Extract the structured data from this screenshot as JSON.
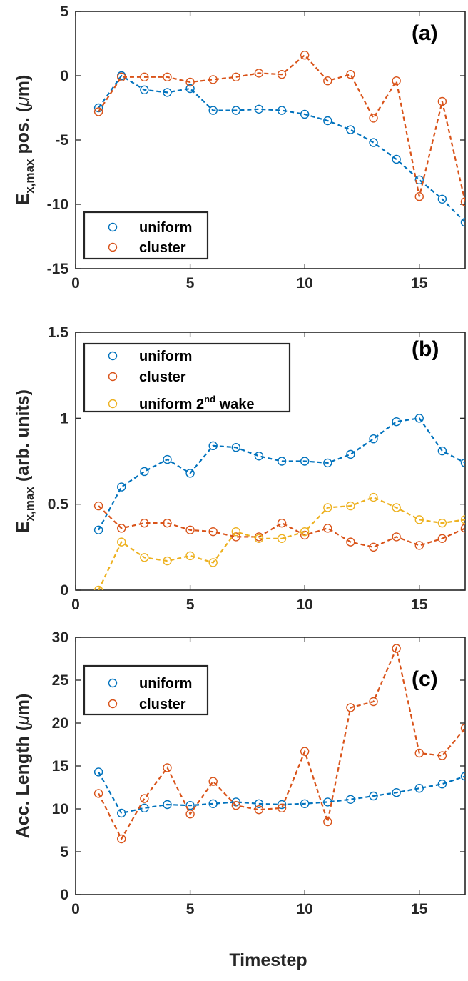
{
  "colors": {
    "uniform": "#0072BD",
    "cluster": "#D95319",
    "uniform2": "#EDB120",
    "axis": "#262626"
  },
  "xlabel": "Timestep",
  "chart_data": [
    {
      "id": "a",
      "type": "line",
      "panel_label": "(a)",
      "ylabel_main": "E",
      "ylabel_sub": "x,max",
      "ylabel_rest": " pos. (",
      "ylabel_greek": "μ",
      "ylabel_end": "m)",
      "xlim": [
        0,
        17
      ],
      "ylim": [
        -15,
        5
      ],
      "xticks": [
        0,
        5,
        10,
        15
      ],
      "yticks": [
        -15,
        -10,
        -5,
        0,
        5
      ],
      "legend": {
        "position": "bottom-left"
      },
      "x": [
        1,
        2,
        3,
        4,
        5,
        6,
        7,
        8,
        9,
        10,
        11,
        12,
        13,
        14,
        15,
        16,
        17
      ],
      "series": [
        {
          "name": "uniform",
          "color_key": "uniform",
          "values": [
            -2.5,
            0.0,
            -1.1,
            -1.3,
            -1.0,
            -2.7,
            -2.7,
            -2.6,
            -2.7,
            -3.0,
            -3.5,
            -4.2,
            -5.2,
            -6.5,
            -8.1,
            -9.6,
            -11.4
          ]
        },
        {
          "name": "cluster",
          "color_key": "cluster",
          "values": [
            -2.8,
            -0.1,
            -0.1,
            -0.1,
            -0.5,
            -0.3,
            -0.1,
            0.2,
            0.1,
            1.6,
            -0.4,
            0.1,
            -3.3,
            -0.4,
            -9.4,
            -2.0,
            -9.8
          ]
        }
      ]
    },
    {
      "id": "b",
      "type": "line",
      "panel_label": "(b)",
      "ylabel_main": "E",
      "ylabel_sub": "x,max",
      "ylabel_rest": " (arb. units)",
      "xlim": [
        0,
        17
      ],
      "ylim": [
        0,
        1.5
      ],
      "xticks": [
        0,
        5,
        10,
        15
      ],
      "yticks": [
        0,
        0.5,
        1,
        1.5
      ],
      "legend": {
        "position": "top-left"
      },
      "x": [
        1,
        2,
        3,
        4,
        5,
        6,
        7,
        8,
        9,
        10,
        11,
        12,
        13,
        14,
        15,
        16,
        17
      ],
      "series": [
        {
          "name": "uniform",
          "color_key": "uniform",
          "values": [
            0.35,
            0.6,
            0.69,
            0.76,
            0.68,
            0.84,
            0.83,
            0.78,
            0.75,
            0.75,
            0.74,
            0.79,
            0.88,
            0.98,
            1.0,
            0.81,
            0.74
          ]
        },
        {
          "name": "cluster",
          "color_key": "cluster",
          "values": [
            0.49,
            0.36,
            0.39,
            0.39,
            0.35,
            0.34,
            0.31,
            0.31,
            0.39,
            0.32,
            0.36,
            0.28,
            0.25,
            0.31,
            0.26,
            0.3,
            0.36
          ]
        },
        {
          "name": "uniform 2nd wake",
          "name_main": "uniform 2",
          "name_sup": "nd",
          "name_end": " wake",
          "color_key": "uniform2",
          "values": [
            0.0,
            0.28,
            0.19,
            0.17,
            0.2,
            0.16,
            0.34,
            0.3,
            0.3,
            0.34,
            0.48,
            0.49,
            0.54,
            0.48,
            0.41,
            0.39,
            0.41
          ]
        }
      ]
    },
    {
      "id": "c",
      "type": "line",
      "panel_label": "(c)",
      "ylabel_main": "Acc. Length (",
      "ylabel_greek": "μ",
      "ylabel_end": "m)",
      "xlim": [
        0,
        17
      ],
      "ylim": [
        0,
        30
      ],
      "xticks": [
        0,
        5,
        10,
        15
      ],
      "yticks": [
        0,
        5,
        10,
        15,
        20,
        25,
        30
      ],
      "legend": {
        "position": "top-left"
      },
      "x": [
        1,
        2,
        3,
        4,
        5,
        6,
        7,
        8,
        9,
        10,
        11,
        12,
        13,
        14,
        15,
        16,
        17
      ],
      "series": [
        {
          "name": "uniform",
          "color_key": "uniform",
          "values": [
            14.3,
            9.5,
            10.1,
            10.5,
            10.4,
            10.6,
            10.8,
            10.6,
            10.5,
            10.6,
            10.8,
            11.1,
            11.5,
            11.9,
            12.4,
            12.9,
            13.8
          ]
        },
        {
          "name": "cluster",
          "color_key": "cluster",
          "values": [
            11.8,
            6.5,
            11.2,
            14.8,
            9.4,
            13.2,
            10.4,
            9.9,
            10.1,
            16.7,
            8.5,
            21.8,
            22.5,
            28.7,
            16.5,
            16.2,
            19.4
          ]
        }
      ]
    }
  ]
}
